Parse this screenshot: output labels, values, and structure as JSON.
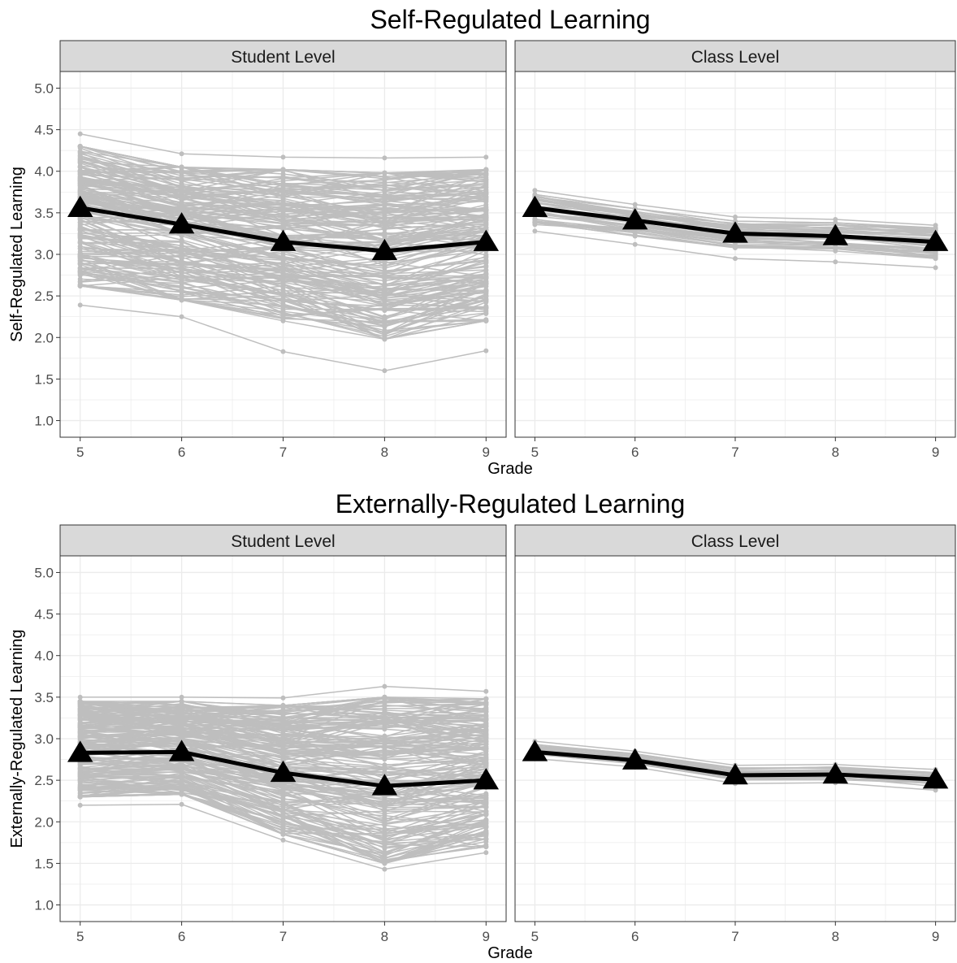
{
  "chart_data": [
    {
      "type": "line",
      "title": "Self-Regulated Learning",
      "xlabel": "Grade",
      "ylabel": "Self-Regulated Learning",
      "x": [
        5,
        6,
        7,
        8,
        9
      ],
      "ylim": [
        0.8,
        5.2
      ],
      "yticks": [
        "1.0",
        "1.5",
        "2.0",
        "2.5",
        "3.0",
        "3.5",
        "4.0",
        "4.5",
        "5.0"
      ],
      "grid": true,
      "line_colors": {
        "individual": "#bebebe",
        "mean": "#000000"
      },
      "panels": [
        {
          "strip": "Student Level",
          "mean": [
            3.56,
            3.36,
            3.15,
            3.04,
            3.15
          ],
          "range_upper": [
            4.45,
            4.21,
            4.17,
            4.16,
            4.17
          ],
          "range_lower": [
            2.39,
            2.25,
            1.83,
            1.6,
            1.84
          ],
          "band_upper": [
            4.3,
            4.05,
            4.02,
            3.98,
            4.02
          ],
          "band_lower": [
            2.62,
            2.45,
            2.2,
            1.98,
            2.2
          ],
          "n_lines": 200
        },
        {
          "strip": "Class Level",
          "mean": [
            3.56,
            3.41,
            3.25,
            3.22,
            3.15
          ],
          "range_upper": [
            3.77,
            3.6,
            3.45,
            3.42,
            3.35
          ],
          "range_lower": [
            3.28,
            3.12,
            2.95,
            2.91,
            2.84
          ],
          "band_upper": [
            3.72,
            3.55,
            3.4,
            3.38,
            3.32
          ],
          "band_lower": [
            3.35,
            3.22,
            3.08,
            3.04,
            2.95
          ],
          "n_lines": 40
        }
      ]
    },
    {
      "type": "line",
      "title": "Externally-Regulated Learning",
      "xlabel": "Grade",
      "ylabel": "Externally-Regulated Learning",
      "x": [
        5,
        6,
        7,
        8,
        9
      ],
      "ylim": [
        0.8,
        5.2
      ],
      "yticks": [
        "1.0",
        "1.5",
        "2.0",
        "2.5",
        "3.0",
        "3.5",
        "4.0",
        "4.5",
        "5.0"
      ],
      "grid": true,
      "line_colors": {
        "individual": "#bebebe",
        "mean": "#000000"
      },
      "panels": [
        {
          "strip": "Student Level",
          "mean": [
            2.83,
            2.84,
            2.59,
            2.43,
            2.5
          ],
          "range_upper": [
            3.5,
            3.5,
            3.49,
            3.63,
            3.57
          ],
          "range_lower": [
            2.2,
            2.21,
            1.78,
            1.43,
            1.63
          ],
          "band_upper": [
            3.45,
            3.45,
            3.4,
            3.5,
            3.48
          ],
          "band_lower": [
            2.3,
            2.33,
            1.85,
            1.5,
            1.7
          ],
          "n_lines": 200
        },
        {
          "strip": "Class Level",
          "mean": [
            2.84,
            2.74,
            2.56,
            2.57,
            2.51
          ],
          "range_upper": [
            2.97,
            2.85,
            2.68,
            2.69,
            2.63
          ],
          "range_lower": [
            2.76,
            2.66,
            2.46,
            2.47,
            2.38
          ],
          "band_upper": [
            2.93,
            2.82,
            2.65,
            2.66,
            2.6
          ],
          "band_lower": [
            2.78,
            2.68,
            2.49,
            2.5,
            2.42
          ],
          "n_lines": 30
        }
      ]
    }
  ]
}
